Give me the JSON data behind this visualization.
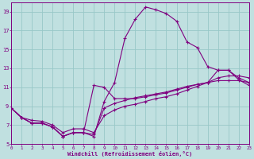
{
  "background_color": "#c0e0e0",
  "grid_color": "#98c8c8",
  "line_color": "#800080",
  "xlabel": "Windchill (Refroidissement éolien,°C)",
  "xlim": [
    0,
    23
  ],
  "ylim": [
    5,
    20
  ],
  "yticks": [
    5,
    7,
    9,
    11,
    13,
    15,
    17,
    19
  ],
  "xticks": [
    0,
    1,
    2,
    3,
    4,
    5,
    6,
    7,
    8,
    9,
    10,
    11,
    12,
    13,
    14,
    15,
    16,
    17,
    18,
    19,
    20,
    21,
    22,
    23
  ],
  "s1_x": [
    0,
    1,
    2,
    3,
    4,
    5,
    6,
    7,
    8,
    9,
    10,
    11,
    12,
    13,
    14,
    15,
    16,
    17,
    18,
    19,
    20,
    21,
    22,
    23
  ],
  "s1_y": [
    8.8,
    7.8,
    7.2,
    7.2,
    6.8,
    5.8,
    6.2,
    6.2,
    5.8,
    9.5,
    11.5,
    16.2,
    18.2,
    19.5,
    19.2,
    18.8,
    18.0,
    15.8,
    15.2,
    13.2,
    12.8,
    12.8,
    11.8,
    11.2
  ],
  "s2_x": [
    0,
    1,
    2,
    3,
    4,
    5,
    6,
    7,
    8,
    9,
    10,
    11,
    12,
    13,
    14,
    15,
    16,
    17,
    18,
    19,
    20,
    21,
    22,
    23
  ],
  "s2_y": [
    8.8,
    7.8,
    7.2,
    7.2,
    6.8,
    5.8,
    6.2,
    6.2,
    11.2,
    11.0,
    9.8,
    9.8,
    9.8,
    10.0,
    10.2,
    10.4,
    10.7,
    11.0,
    11.3,
    11.5,
    12.8,
    12.8,
    12.0,
    11.5
  ],
  "s3_x": [
    0,
    1,
    2,
    3,
    4,
    5,
    6,
    7,
    8,
    9,
    10,
    11,
    12,
    13,
    14,
    15,
    16,
    17,
    18,
    19,
    20,
    21,
    22,
    23
  ],
  "s3_y": [
    8.8,
    7.8,
    7.2,
    7.2,
    6.8,
    5.8,
    6.2,
    6.2,
    6.0,
    8.8,
    9.3,
    9.6,
    9.9,
    10.1,
    10.3,
    10.5,
    10.8,
    11.1,
    11.3,
    11.5,
    11.7,
    11.7,
    11.7,
    11.5
  ],
  "s4_x": [
    0,
    1,
    2,
    3,
    4,
    5,
    6,
    7,
    8,
    9,
    10,
    11,
    12,
    13,
    14,
    15,
    16,
    17,
    18,
    19,
    20,
    21,
    22,
    23
  ],
  "s4_y": [
    8.8,
    7.8,
    7.5,
    7.4,
    7.0,
    6.2,
    6.6,
    6.6,
    6.2,
    8.0,
    8.6,
    9.0,
    9.2,
    9.5,
    9.8,
    10.0,
    10.3,
    10.7,
    11.1,
    11.5,
    12.0,
    12.2,
    12.2,
    12.0
  ]
}
